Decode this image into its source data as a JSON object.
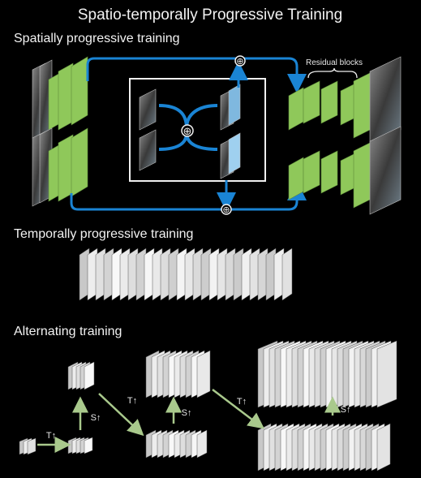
{
  "title": "Spatio-temporally Progressive Training",
  "sections": {
    "spatial": {
      "heading": "Spatially progressive training",
      "residual_label": "Residual blocks",
      "plus_symbol": "⊕"
    },
    "temporal": {
      "heading": "Temporally progressive training"
    },
    "alternating": {
      "heading": "Alternating training",
      "t_label": "T↑",
      "s_label": "S↑"
    }
  },
  "colors": {
    "background": "#000000",
    "layer_green": "#8fc85a",
    "arrow_blue": "#1a84d4",
    "arrow_green": "#a9c98c",
    "frame_white": "#f0f0f0"
  }
}
